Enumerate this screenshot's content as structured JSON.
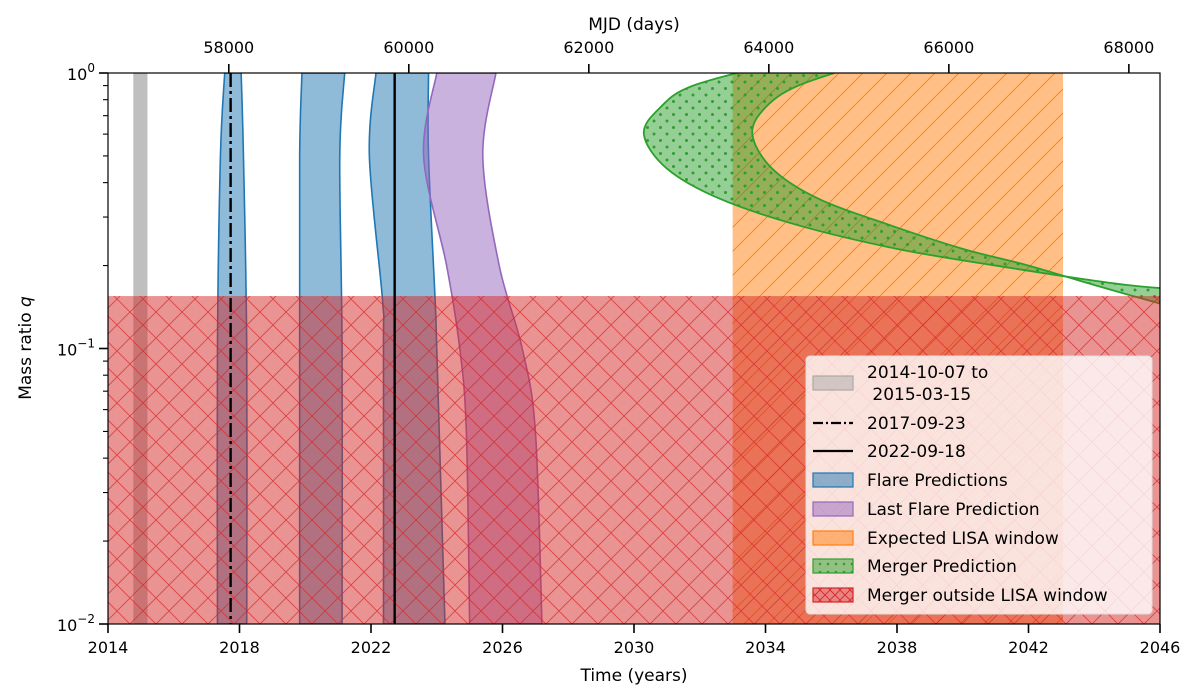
{
  "chart_data": {
    "type": "area",
    "xlabel": "Time (years)",
    "ylabel_main": "Mass ratio ",
    "ylabel_q": "q",
    "top_xlabel": "MJD (days)",
    "xlim": [
      2014,
      2046
    ],
    "ylim": [
      0.01,
      1
    ],
    "y_scale": "log",
    "x_ticks": [
      2014,
      2018,
      2022,
      2026,
      2030,
      2034,
      2038,
      2042,
      2046
    ],
    "y_ticks": [
      {
        "value": 1,
        "mantissa": "10",
        "exponent": "0"
      },
      {
        "value": 0.1,
        "mantissa": "10",
        "exponent": "−1"
      },
      {
        "value": 0.01,
        "mantissa": "10",
        "exponent": "−2"
      }
    ],
    "top_ticks": [
      {
        "mjd": 58000,
        "label": "58000"
      },
      {
        "mjd": 60000,
        "label": "60000"
      },
      {
        "mjd": 62000,
        "label": "62000"
      },
      {
        "mjd": 64000,
        "label": "64000"
      },
      {
        "mjd": 66000,
        "label": "66000"
      },
      {
        "mjd": 68000,
        "label": "68000"
      }
    ],
    "mjd_reference": {
      "year": 2014.0,
      "mjd": 56658
    },
    "q_cut": 0.155,
    "colors": {
      "gray": "#a9a9a9",
      "blue": "#1f77b4",
      "purple": "#9467bd",
      "orange": "#ff7f0e",
      "green": "#2ca02c",
      "red": "#d62728"
    },
    "observation_window": {
      "start": 2014.77,
      "end": 2015.2,
      "label": "2014-10-07 to\n 2015-03-15"
    },
    "vertical_lines": [
      {
        "year": 2017.73,
        "style": "dashdot",
        "label": "2017-09-23"
      },
      {
        "year": 2022.72,
        "style": "solid",
        "label": "2022-09-18"
      }
    ],
    "flare_predictions": [
      {
        "left": [
          [
            1,
            2017.55
          ],
          [
            0.5,
            2017.42
          ],
          [
            0.1,
            2017.33
          ],
          [
            0.01,
            2017.33
          ]
        ],
        "right": [
          [
            1,
            2018.05
          ],
          [
            0.5,
            2018.12
          ],
          [
            0.1,
            2018.22
          ],
          [
            0.01,
            2018.22
          ]
        ]
      },
      {
        "left": [
          [
            1,
            2019.9
          ],
          [
            0.5,
            2019.83
          ],
          [
            0.1,
            2019.83
          ],
          [
            0.01,
            2019.83
          ]
        ],
        "right": [
          [
            1,
            2021.2
          ],
          [
            0.5,
            2021.05
          ],
          [
            0.1,
            2021.12
          ],
          [
            0.01,
            2021.12
          ]
        ]
      },
      {
        "left": [
          [
            1,
            2022.15
          ],
          [
            0.5,
            2021.95
          ],
          [
            0.15,
            2022.35
          ],
          [
            0.1,
            2022.38
          ],
          [
            0.01,
            2022.38
          ]
        ],
        "right": [
          [
            1,
            2023.75
          ],
          [
            0.5,
            2023.75
          ],
          [
            0.15,
            2023.95
          ],
          [
            0.1,
            2024.0
          ],
          [
            0.01,
            2024.25
          ]
        ]
      }
    ],
    "last_flare_prediction": {
      "left": [
        [
          1,
          2024.0
        ],
        [
          0.5,
          2023.6
        ],
        [
          0.2,
          2024.3
        ],
        [
          0.1,
          2024.7
        ],
        [
          0.05,
          2024.9
        ],
        [
          0.01,
          2025.0
        ]
      ],
      "right": [
        [
          1,
          2025.8
        ],
        [
          0.5,
          2025.4
        ],
        [
          0.2,
          2025.9
        ],
        [
          0.1,
          2026.6
        ],
        [
          0.05,
          2027.0
        ],
        [
          0.01,
          2027.2
        ]
      ]
    },
    "lisa_window": {
      "start": 2033.0,
      "end": 2043.05
    },
    "merger_prediction": {
      "outer": [
        [
          1.1,
          2034.5
        ],
        [
          0.9,
          2031.8
        ],
        [
          0.75,
          2030.8
        ],
        [
          0.6,
          2030.3
        ],
        [
          0.45,
          2031.0
        ],
        [
          0.35,
          2032.6
        ],
        [
          0.28,
          2035.0
        ],
        [
          0.23,
          2038.0
        ],
        [
          0.2,
          2041.0
        ],
        [
          0.17,
          2045.0
        ],
        [
          0.16,
          2048.0
        ]
      ],
      "inner": [
        [
          1.1,
          2037.2
        ],
        [
          0.9,
          2035.0
        ],
        [
          0.75,
          2034.0
        ],
        [
          0.6,
          2033.6
        ],
        [
          0.45,
          2034.2
        ],
        [
          0.35,
          2035.6
        ],
        [
          0.28,
          2037.8
        ],
        [
          0.23,
          2040.0
        ],
        [
          0.2,
          2042.0
        ],
        [
          0.17,
          2044.0
        ],
        [
          0.14,
          2046.5
        ]
      ]
    },
    "legend": {
      "placement": "lower right",
      "entries": [
        {
          "label_line1": "2014-10-07 to",
          "label_line2": " 2015-03-15",
          "kind": "patch",
          "color": "#a9a9a9"
        },
        {
          "label": "2017-09-23",
          "kind": "line",
          "style": "dashdot"
        },
        {
          "label": "2022-09-18",
          "kind": "line",
          "style": "solid"
        },
        {
          "label": "Flare Predictions",
          "kind": "patch",
          "color": "#1f77b4"
        },
        {
          "label": "Last Flare Prediction",
          "kind": "patch",
          "color": "#9467bd"
        },
        {
          "label": "Expected LISA window",
          "kind": "patch",
          "color": "#ff7f0e"
        },
        {
          "label": "Merger Prediction",
          "kind": "patch",
          "color": "#2ca02c",
          "hatch": "dots"
        },
        {
          "label": "Merger outside LISA window",
          "kind": "patch",
          "color": "#d62728",
          "hatch": "cross"
        }
      ]
    }
  }
}
